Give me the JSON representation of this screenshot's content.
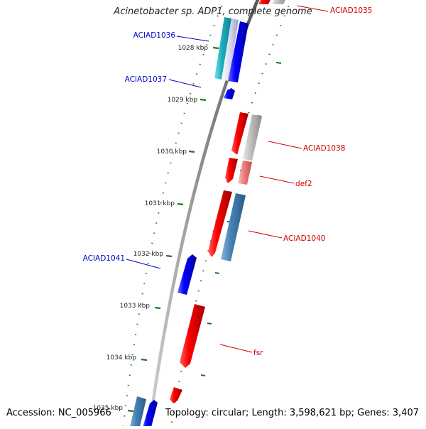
{
  "title": "Acinetobacter sp. ADP1, complete genome",
  "footer": {
    "accession": "Accession: NC_005966",
    "summary": "Topology: circular; Length: 3,598,621 bp; Genes: 3,407"
  },
  "colors": {
    "forward_gene": "#e00000",
    "reverse_gene": "#0000ff",
    "forward_label": "#d00000",
    "reverse_label": "#0000cc",
    "forward_feature_other": "#b0b0b0",
    "forward_feature_light": "#f07878",
    "steelblue_feature": "#4682b4",
    "teal_feature": "#20b2c0",
    "backbone": "#888888",
    "ticks": "#1a7a1a"
  },
  "kbp_ticks": [
    "1028 kbp",
    "1029 kbp",
    "1030 kbp",
    "1031 kbp",
    "1032 kbp",
    "1033 kbp",
    "1034 kbp",
    "1035 kbp"
  ],
  "gene_labels": [
    {
      "name": "ACIAD1035",
      "strand": "forward"
    },
    {
      "name": "ACIAD1036",
      "strand": "reverse"
    },
    {
      "name": "ACIAD1037",
      "strand": "reverse"
    },
    {
      "name": "ACIAD1038",
      "strand": "forward"
    },
    {
      "name": "def2",
      "strand": "forward"
    },
    {
      "name": "ACIAD1040",
      "strand": "forward"
    },
    {
      "name": "ACIAD1041",
      "strand": "reverse"
    },
    {
      "name": "fsr",
      "strand": "forward"
    }
  ]
}
